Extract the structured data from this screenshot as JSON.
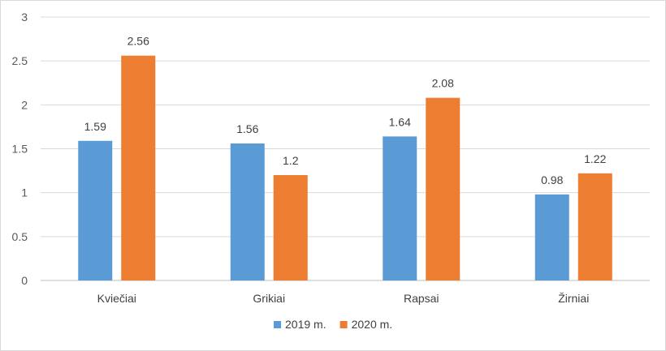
{
  "chart_data": {
    "type": "bar",
    "title": "",
    "xlabel": "",
    "ylabel": "",
    "categories": [
      "Kviečiai",
      "Grikiai",
      "Rapsai",
      "Žirniai"
    ],
    "series": [
      {
        "name": "2019 m.",
        "color": "#5b9bd5",
        "values": [
          1.59,
          1.56,
          1.64,
          0.98
        ],
        "labels": [
          "1.59",
          "1.56",
          "1.64",
          "0.98"
        ]
      },
      {
        "name": "2020 m.",
        "color": "#ed7d31",
        "values": [
          2.56,
          1.2,
          2.08,
          1.22
        ],
        "labels": [
          "2.56",
          "1.2",
          "2.08",
          "1.22"
        ]
      }
    ],
    "ylim": [
      0,
      3
    ],
    "yticks": [
      0,
      0.5,
      1,
      1.5,
      2,
      2.5,
      3
    ],
    "ytick_labels": [
      "0",
      "0.5",
      "1",
      "1.5",
      "2",
      "2.5",
      "3"
    ],
    "grid": true,
    "legend": "bottom-center"
  }
}
